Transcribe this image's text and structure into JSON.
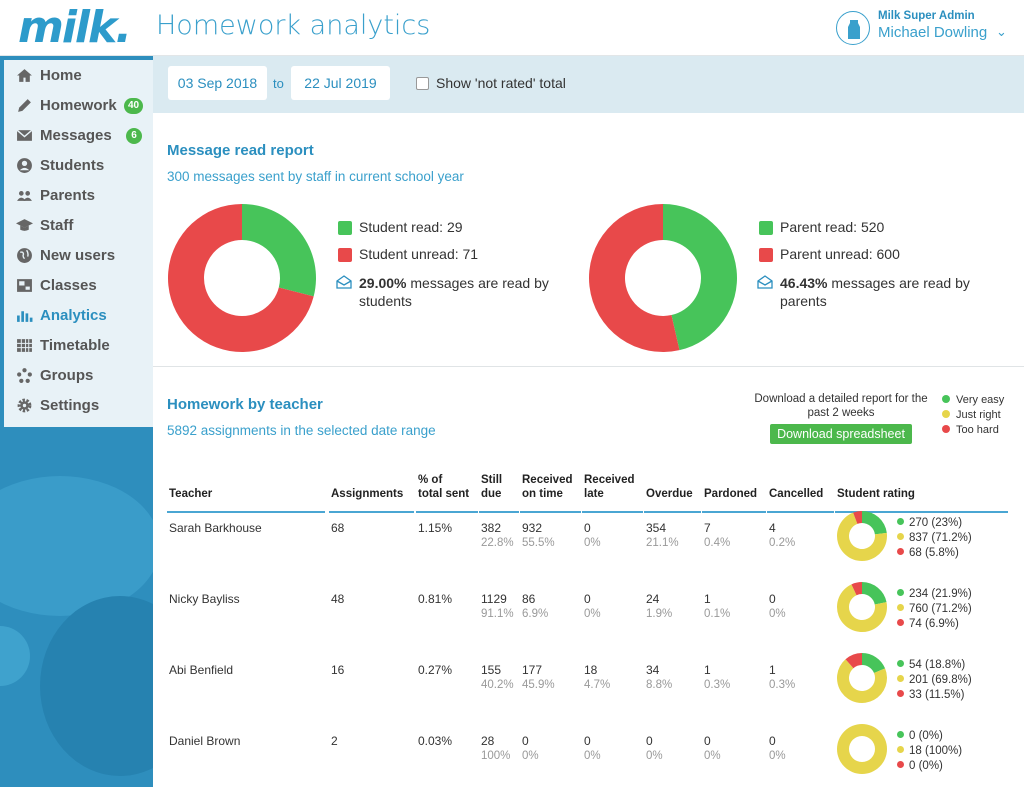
{
  "app": {
    "logo": "milk.",
    "page_title": "Homework analytics"
  },
  "user": {
    "role": "Milk Super Admin",
    "name": "Michael Dowling"
  },
  "nav": [
    {
      "label": "Home",
      "icon": "home-icon"
    },
    {
      "label": "Homework",
      "icon": "pencil-icon",
      "badge": "40"
    },
    {
      "label": "Messages",
      "icon": "envelope-icon",
      "badge": "6"
    },
    {
      "label": "Students",
      "icon": "user-circle-icon"
    },
    {
      "label": "Parents",
      "icon": "users-icon"
    },
    {
      "label": "Staff",
      "icon": "graduation-cap-icon"
    },
    {
      "label": "New users",
      "icon": "globe-icon"
    },
    {
      "label": "Classes",
      "icon": "classes-icon"
    },
    {
      "label": "Analytics",
      "icon": "bar-chart-icon",
      "active": true
    },
    {
      "label": "Timetable",
      "icon": "calendar-grid-icon"
    },
    {
      "label": "Groups",
      "icon": "groups-icon"
    },
    {
      "label": "Settings",
      "icon": "gear-icon"
    }
  ],
  "filters": {
    "from": "03 Sep 2018",
    "to_label": "to",
    "to": "22 Jul 2019",
    "not_rated_label": "Show 'not rated' total",
    "not_rated_checked": false
  },
  "message_report": {
    "title": "Message read report",
    "subtitle": "300 messages sent by staff in current school year",
    "students": {
      "read_label": "Student read: 29",
      "unread_label": "Student unread: 71",
      "read": 29,
      "unread": 71,
      "pct": "29.00%",
      "pct_text": " messages are read by",
      "pct_text2": "students"
    },
    "parents": {
      "read_label": "Parent read: 520",
      "unread_label": "Parent unread: 600",
      "read": 520,
      "unread": 600,
      "pct": "46.43%",
      "pct_text": " messages are read by",
      "pct_text2": "parents"
    }
  },
  "homework": {
    "title": "Homework by teacher",
    "subtitle": "5892 assignments in the selected date range",
    "download_note": "Download a detailed report for the past 2 weeks",
    "download_button": "Download spreadsheet",
    "rating_legend": [
      "Very easy",
      "Just right",
      "Too hard"
    ],
    "headers": {
      "teacher": "Teacher",
      "assignments": "Assignments",
      "pct": [
        "% of",
        "total sent"
      ],
      "still_due": [
        "Still",
        "due"
      ],
      "on_time": [
        "Received",
        "on time"
      ],
      "late": [
        "Received",
        "late"
      ],
      "overdue": "Overdue",
      "pardoned": "Pardoned",
      "cancelled": "Cancelled",
      "rating": "Student rating"
    },
    "rows": [
      {
        "teacher": "Sarah Barkhouse",
        "assignments": "68",
        "pct": "1.15%",
        "still_due": "382",
        "still_due_pct": "22.8%",
        "on_time": "932",
        "on_time_pct": "55.5%",
        "late": "0",
        "late_pct": "0%",
        "overdue": "354",
        "overdue_pct": "21.1%",
        "pardoned": "7",
        "pardoned_pct": "0.4%",
        "cancelled": "4",
        "cancelled_pct": "0.2%",
        "rating_labels": [
          "270 (23%)",
          "837 (71.2%)",
          "68 (5.8%)"
        ],
        "rating": [
          270,
          837,
          68
        ]
      },
      {
        "teacher": "Nicky Bayliss",
        "assignments": "48",
        "pct": "0.81%",
        "still_due": "1129",
        "still_due_pct": "91.1%",
        "on_time": "86",
        "on_time_pct": "6.9%",
        "late": "0",
        "late_pct": "0%",
        "overdue": "24",
        "overdue_pct": "1.9%",
        "pardoned": "1",
        "pardoned_pct": "0.1%",
        "cancelled": "0",
        "cancelled_pct": "0%",
        "rating_labels": [
          "234 (21.9%)",
          "760 (71.2%)",
          "74 (6.9%)"
        ],
        "rating": [
          234,
          760,
          74
        ]
      },
      {
        "teacher": "Abi Benfield",
        "assignments": "16",
        "pct": "0.27%",
        "still_due": "155",
        "still_due_pct": "40.2%",
        "on_time": "177",
        "on_time_pct": "45.9%",
        "late": "18",
        "late_pct": "4.7%",
        "overdue": "34",
        "overdue_pct": "8.8%",
        "pardoned": "1",
        "pardoned_pct": "0.3%",
        "cancelled": "1",
        "cancelled_pct": "0.3%",
        "rating_labels": [
          "54 (18.8%)",
          "201 (69.8%)",
          "33 (11.5%)"
        ],
        "rating": [
          54,
          201,
          33
        ]
      },
      {
        "teacher": "Daniel Brown",
        "assignments": "2",
        "pct": "0.03%",
        "still_due": "28",
        "still_due_pct": "100%",
        "on_time": "0",
        "on_time_pct": "0%",
        "late": "0",
        "late_pct": "0%",
        "overdue": "0",
        "overdue_pct": "0%",
        "pardoned": "0",
        "pardoned_pct": "0%",
        "cancelled": "0",
        "cancelled_pct": "0%",
        "rating_labels": [
          "0 (0%)",
          "18 (100%)",
          "0 (0%)"
        ],
        "rating": [
          0,
          18,
          0
        ]
      }
    ]
  },
  "colors": {
    "green": "#47c45a",
    "red": "#e8494a",
    "yellow": "#e6d54b",
    "blue": "#2b8fbf"
  }
}
